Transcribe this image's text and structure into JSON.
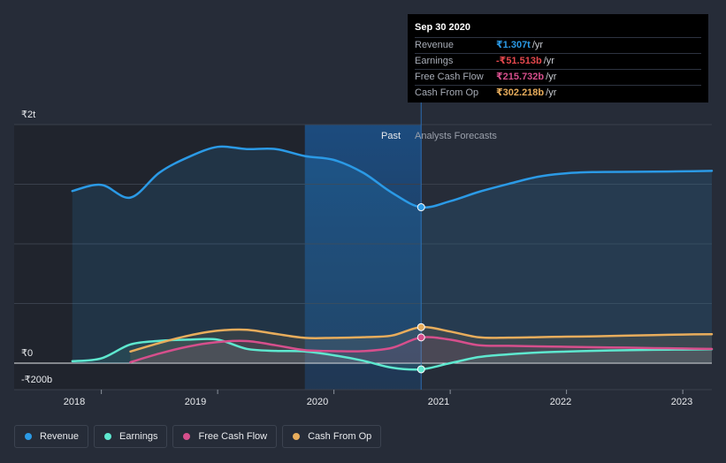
{
  "chart_data": {
    "type": "line",
    "title": "",
    "y_tick_labels": [
      "₹2t",
      "₹0",
      "-₹200b"
    ],
    "ylim": [
      -200,
      2000
    ],
    "y_unit": "₹b",
    "x_tick_labels": [
      "2018",
      "2019",
      "2020",
      "2021",
      "2022",
      "2023"
    ],
    "x_tick_years": [
      2018,
      2019,
      2020,
      2021,
      2022,
      2023
    ],
    "xlim": [
      2017.25,
      2023.25
    ],
    "past_label": "Past",
    "forecast_label": "Analysts Forecasts",
    "highlight_start": 2019.75,
    "divider_x": 2020.75,
    "data_start": 2017.75,
    "series": [
      {
        "name": "Revenue",
        "color": "#2b9ae6",
        "x": [
          2017.75,
          2018.0,
          2018.25,
          2018.5,
          2018.75,
          2019.0,
          2019.25,
          2019.5,
          2019.75,
          2020.0,
          2020.25,
          2020.5,
          2020.75,
          2021.0,
          2021.25,
          2021.5,
          2021.75,
          2022.0,
          2022.25,
          2022.5,
          2022.75,
          2023.0,
          2023.25
        ],
        "y": [
          1443,
          1495,
          1388,
          1598,
          1728,
          1813,
          1795,
          1795,
          1736,
          1704,
          1597,
          1428,
          1307,
          1358,
          1437,
          1502,
          1562,
          1592,
          1602,
          1604,
          1606,
          1608,
          1612
        ]
      },
      {
        "name": "Earnings",
        "color": "#5ee8cf",
        "x": [
          2017.75,
          2018.0,
          2018.25,
          2018.5,
          2018.75,
          2019.0,
          2019.25,
          2019.5,
          2019.75,
          2020.0,
          2020.25,
          2020.5,
          2020.75,
          2021.0,
          2021.25,
          2021.5,
          2021.75,
          2022.0,
          2022.25,
          2022.5,
          2022.75,
          2023.0,
          2023.25
        ],
        "y": [
          16,
          40,
          157,
          187,
          197,
          197,
          120,
          103,
          98,
          66,
          21,
          -38,
          -51.5,
          0,
          52,
          74,
          89,
          97,
          104,
          108,
          112,
          114,
          117
        ]
      },
      {
        "name": "Free Cash Flow",
        "color": "#d64f8c",
        "x": [
          2018.25,
          2018.5,
          2018.75,
          2019.0,
          2019.25,
          2019.5,
          2019.75,
          2020.0,
          2020.25,
          2020.5,
          2020.75,
          2021.0,
          2021.25,
          2021.5,
          2021.75,
          2022.0,
          2022.25,
          2022.5,
          2022.75,
          2023.0,
          2023.25
        ],
        "y": [
          8,
          81,
          140,
          177,
          185,
          150,
          109,
          101,
          101,
          129,
          215.7,
          197,
          150,
          145,
          141,
          137,
          133,
          130,
          126,
          123,
          119
        ]
      },
      {
        "name": "Cash From Op",
        "color": "#e8ad5c",
        "x": [
          2018.25,
          2018.5,
          2018.75,
          2019.0,
          2019.25,
          2019.5,
          2019.75,
          2020.0,
          2020.25,
          2020.5,
          2020.75,
          2021.0,
          2021.25,
          2021.5,
          2021.75,
          2022.0,
          2022.25,
          2022.5,
          2022.75,
          2023.0,
          2023.25
        ],
        "y": [
          98,
          169,
          231,
          272,
          280,
          245,
          212,
          212,
          218,
          232,
          302.2,
          265,
          216,
          214,
          218,
          222,
          225,
          230,
          235,
          240,
          243
        ]
      }
    ],
    "markers_at": 2020.75
  },
  "tooltip": {
    "date": "Sep 30 2020",
    "rows": [
      {
        "label": "Revenue",
        "value": "₹1.307t",
        "unit": "/yr",
        "color": "#2b9ae6"
      },
      {
        "label": "Earnings",
        "value": "-₹51.513b",
        "unit": "/yr",
        "color": "#e5484d"
      },
      {
        "label": "Free Cash Flow",
        "value": "₹215.732b",
        "unit": "/yr",
        "color": "#d64f8c"
      },
      {
        "label": "Cash From Op",
        "value": "₹302.218b",
        "unit": "/yr",
        "color": "#e8ad5c"
      }
    ]
  },
  "legend": [
    {
      "label": "Revenue",
      "color": "#2b9ae6"
    },
    {
      "label": "Earnings",
      "color": "#5ee8cf"
    },
    {
      "label": "Free Cash Flow",
      "color": "#d64f8c"
    },
    {
      "label": "Cash From Op",
      "color": "#e8ad5c"
    }
  ]
}
